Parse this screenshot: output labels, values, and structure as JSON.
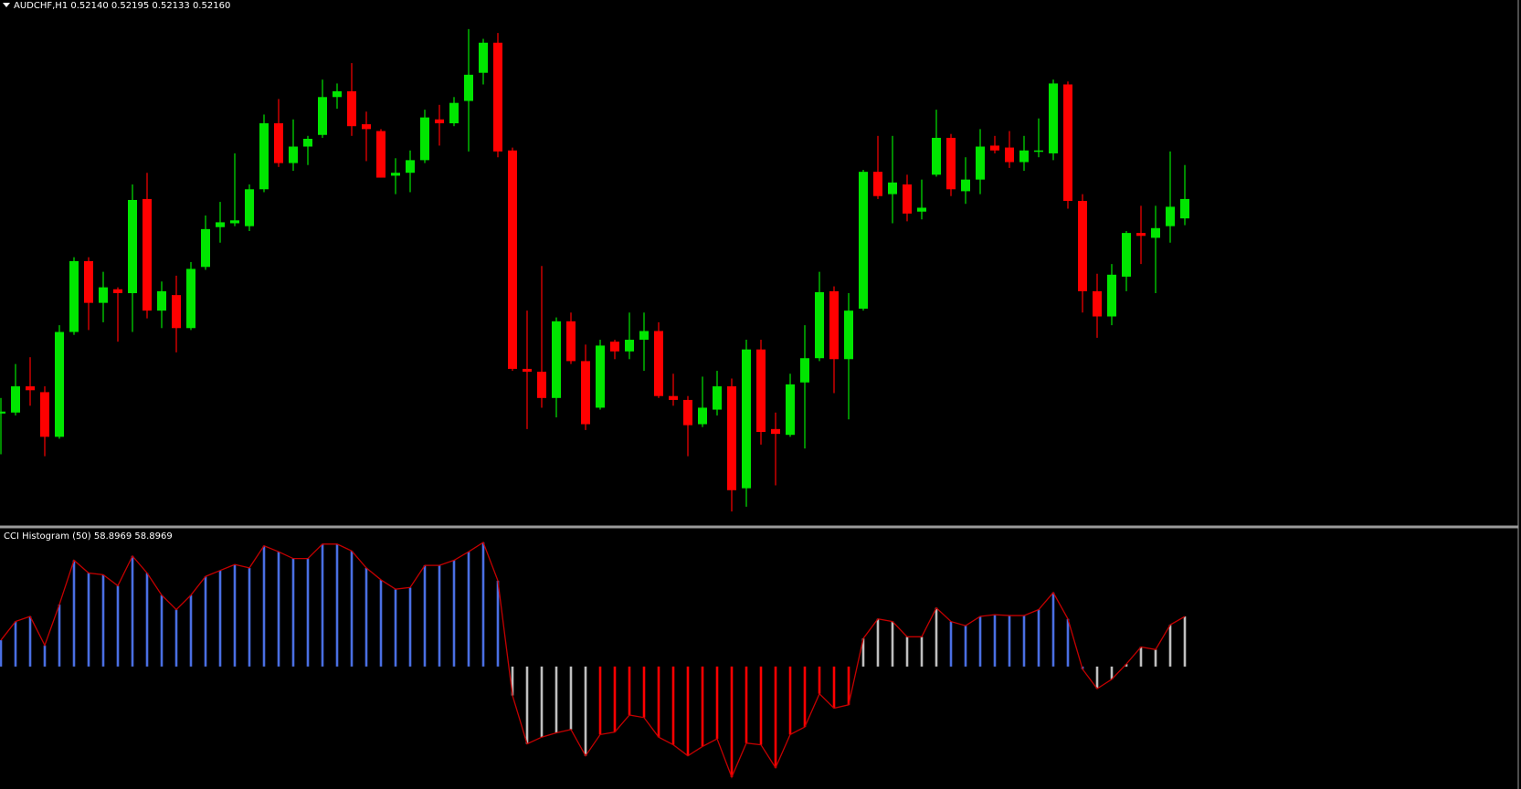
{
  "chart_data": [
    {
      "type": "candlestick",
      "title": "AUDCHF,H1  0.52140 0.52195 0.52133 0.52160",
      "ylim": [
        0.51825,
        0.52365
      ],
      "up_color": "#00e600",
      "down_color": "#ff0000",
      "open": [
        0.51939,
        0.5194,
        0.51967,
        0.51961,
        0.51915,
        0.52023,
        0.52096,
        0.52053,
        0.52067,
        0.52063,
        0.5216,
        0.52045,
        0.52061,
        0.52027,
        0.5209,
        0.52131,
        0.52135,
        0.52132,
        0.5217,
        0.52238,
        0.52197,
        0.52214,
        0.52226,
        0.52265,
        0.52271,
        0.52237,
        0.5223,
        0.52184,
        0.52187,
        0.522,
        0.52242,
        0.52238,
        0.52261,
        0.5229,
        0.52321,
        0.5221,
        0.51985,
        0.51982,
        0.51955,
        0.52034,
        0.51993,
        0.51945,
        0.52013,
        0.52003,
        0.52015,
        0.52024,
        0.51957,
        0.51953,
        0.51928,
        0.51943,
        0.51967,
        0.51862,
        0.52005,
        0.51923,
        0.51917,
        0.51971,
        0.51996,
        0.52065,
        0.51995,
        0.52047,
        0.52188,
        0.52165,
        0.52175,
        0.52147,
        0.52185,
        0.52223,
        0.52168,
        0.5218,
        0.52215,
        0.52213,
        0.52198,
        0.52209,
        0.52207,
        0.52278,
        0.52158,
        0.52065,
        0.52039,
        0.5208,
        0.52125,
        0.5212,
        0.52132,
        0.5214
      ],
      "high": [
        0.51955,
        0.5199,
        0.51997,
        0.51967,
        0.5203,
        0.521,
        0.521,
        0.52085,
        0.52069,
        0.52175,
        0.52187,
        0.52075,
        0.52081,
        0.52095,
        0.52143,
        0.52157,
        0.52207,
        0.52175,
        0.52247,
        0.52263,
        0.52242,
        0.52225,
        0.52283,
        0.52279,
        0.523,
        0.5225,
        0.52232,
        0.52202,
        0.5221,
        0.52252,
        0.52257,
        0.52265,
        0.52335,
        0.52325,
        0.52331,
        0.52213,
        0.52045,
        0.52091,
        0.52038,
        0.52043,
        0.5201,
        0.52015,
        0.52015,
        0.52043,
        0.52043,
        0.52033,
        0.5198,
        0.51957,
        0.51977,
        0.51983,
        0.51975,
        0.52015,
        0.52015,
        0.5194,
        0.5198,
        0.5203,
        0.52085,
        0.5207,
        0.52063,
        0.5219,
        0.52225,
        0.52225,
        0.52185,
        0.5218,
        0.52252,
        0.52227,
        0.52203,
        0.52232,
        0.52225,
        0.5223,
        0.52225,
        0.52243,
        0.52283,
        0.52281,
        0.52165,
        0.52083,
        0.52093,
        0.52127,
        0.52153,
        0.52153,
        0.52209,
        0.52195
      ],
      "low": [
        0.51897,
        0.51937,
        0.51947,
        0.51895,
        0.51913,
        0.5202,
        0.52025,
        0.52033,
        0.52013,
        0.52023,
        0.52037,
        0.52027,
        0.52002,
        0.52025,
        0.52087,
        0.52115,
        0.52132,
        0.52127,
        0.52167,
        0.52193,
        0.52189,
        0.52195,
        0.52223,
        0.52253,
        0.52225,
        0.52199,
        0.52182,
        0.52165,
        0.52167,
        0.52197,
        0.52215,
        0.52235,
        0.52209,
        0.52278,
        0.52203,
        0.51983,
        0.51923,
        0.51945,
        0.51935,
        0.5199,
        0.51922,
        0.51943,
        0.51995,
        0.51995,
        0.51983,
        0.51955,
        0.51947,
        0.51895,
        0.51925,
        0.51937,
        0.51838,
        0.51843,
        0.51907,
        0.51865,
        0.51915,
        0.51903,
        0.51993,
        0.5196,
        0.51933,
        0.52045,
        0.5216,
        0.52135,
        0.52137,
        0.52139,
        0.52183,
        0.52163,
        0.52155,
        0.52165,
        0.52207,
        0.52192,
        0.52189,
        0.52203,
        0.522,
        0.5215,
        0.52043,
        0.52017,
        0.5203,
        0.52065,
        0.52093,
        0.52063,
        0.52115,
        0.52133
      ],
      "close": [
        0.51941,
        0.51967,
        0.51963,
        0.51915,
        0.52023,
        0.52096,
        0.52053,
        0.52069,
        0.52063,
        0.52159,
        0.52045,
        0.52065,
        0.52027,
        0.52088,
        0.52129,
        0.52136,
        0.52138,
        0.5217,
        0.52238,
        0.52197,
        0.52214,
        0.52222,
        0.52265,
        0.52271,
        0.52235,
        0.52232,
        0.52182,
        0.52187,
        0.522,
        0.52244,
        0.52238,
        0.52259,
        0.52288,
        0.52321,
        0.52209,
        0.51985,
        0.51982,
        0.51955,
        0.52034,
        0.51993,
        0.51928,
        0.52009,
        0.52003,
        0.52015,
        0.52024,
        0.51957,
        0.51953,
        0.51927,
        0.51945,
        0.51967,
        0.5186,
        0.52005,
        0.5192,
        0.51918,
        0.51969,
        0.51996,
        0.52064,
        0.51995,
        0.52045,
        0.52188,
        0.52163,
        0.52177,
        0.52145,
        0.52151,
        0.52223,
        0.5217,
        0.5218,
        0.52214,
        0.5221,
        0.52198,
        0.5221,
        0.5221,
        0.52279,
        0.52158,
        0.52065,
        0.52039,
        0.52082,
        0.52125,
        0.52122,
        0.5213,
        0.52152,
        0.5216
      ]
    },
    {
      "type": "bar",
      "title": "CCI Histogram (50) 58.8969 58.8969",
      "ylim": [
        -144,
        161
      ],
      "line_color": "#c40000",
      "values": [
        31,
        53,
        59,
        25,
        73,
        125,
        110,
        108,
        95,
        130,
        110,
        84,
        67,
        84,
        106,
        113,
        120,
        116,
        142,
        135,
        127,
        127,
        144,
        144,
        136,
        116,
        102,
        91,
        93,
        119,
        119,
        125,
        135,
        146,
        101,
        -34,
        -91,
        -83,
        -78,
        -74,
        -105,
        -80,
        -77,
        -57,
        -60,
        -83,
        -92,
        -105,
        -94,
        -85,
        -130,
        -90,
        -92,
        -119,
        -80,
        -71,
        -32,
        -49,
        -45,
        33,
        56,
        53,
        35,
        35,
        69,
        53,
        48,
        59,
        61,
        60,
        60,
        67,
        87,
        56,
        -3,
        -26,
        -15,
        3,
        23,
        20,
        49,
        58.8969
      ],
      "colors": [
        "#4a6fe3",
        "#4a6fe3",
        "#4a6fe3",
        "#4a6fe3",
        "#4a6fe3",
        "#4a6fe3",
        "#4a6fe3",
        "#4a6fe3",
        "#4a6fe3",
        "#4a6fe3",
        "#4a6fe3",
        "#4a6fe3",
        "#4a6fe3",
        "#4a6fe3",
        "#4a6fe3",
        "#4a6fe3",
        "#4a6fe3",
        "#4a6fe3",
        "#4a6fe3",
        "#4a6fe3",
        "#4a6fe3",
        "#4a6fe3",
        "#4a6fe3",
        "#4a6fe3",
        "#4a6fe3",
        "#4a6fe3",
        "#4a6fe3",
        "#4a6fe3",
        "#4a6fe3",
        "#4a6fe3",
        "#4a6fe3",
        "#4a6fe3",
        "#4a6fe3",
        "#4a6fe3",
        "#4a6fe3",
        "#c0c0c0",
        "#c0c0c0",
        "#c0c0c0",
        "#c0c0c0",
        "#c0c0c0",
        "#c0c0c0",
        "#ff0000",
        "#ff0000",
        "#ff0000",
        "#ff0000",
        "#ff0000",
        "#ff0000",
        "#ff0000",
        "#ff0000",
        "#ff0000",
        "#ff0000",
        "#ff0000",
        "#ff0000",
        "#ff0000",
        "#ff0000",
        "#ff0000",
        "#ff0000",
        "#ff0000",
        "#ff0000",
        "#c0c0c0",
        "#c0c0c0",
        "#c0c0c0",
        "#c0c0c0",
        "#c0c0c0",
        "#c0c0c0",
        "#4a6fe3",
        "#4a6fe3",
        "#4a6fe3",
        "#4a6fe3",
        "#4a6fe3",
        "#4a6fe3",
        "#4a6fe3",
        "#4a6fe3",
        "#4a6fe3",
        "#4a6fe3",
        "#c0c0c0",
        "#c0c0c0",
        "#c0c0c0",
        "#c0c0c0",
        "#c0c0c0",
        "#c0c0c0",
        "#c0c0c0"
      ]
    }
  ]
}
